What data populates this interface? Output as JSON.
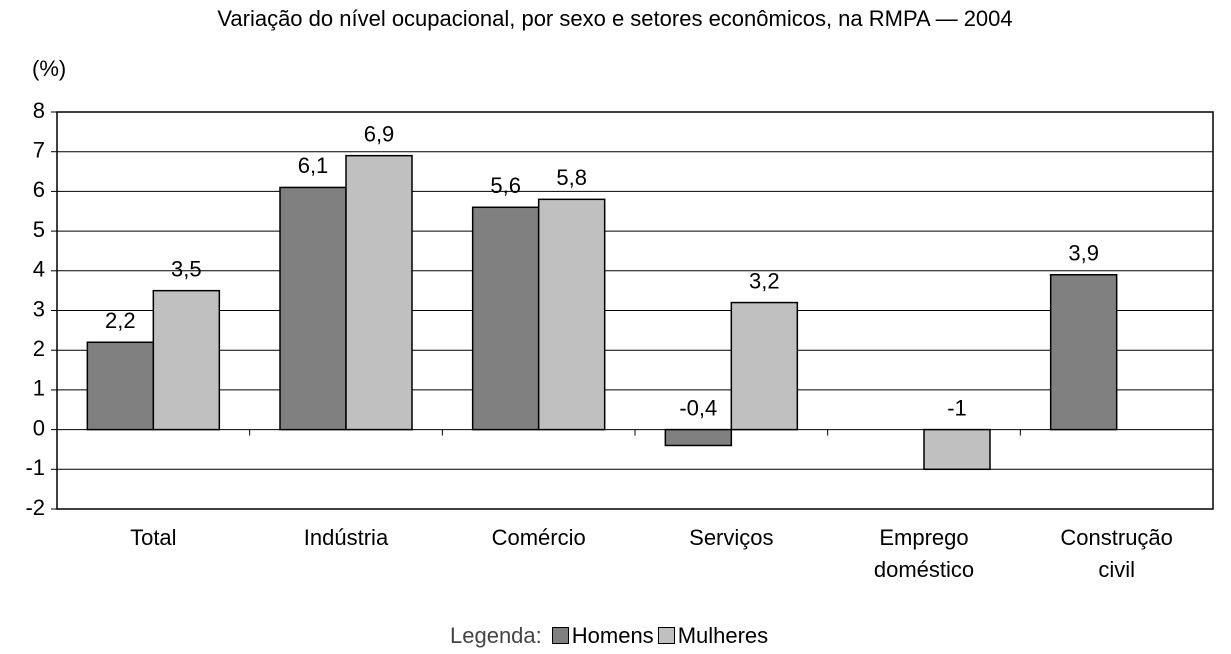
{
  "chart_data": {
    "type": "bar",
    "title": "Variação do nível ocupacional, por sexo e setores econômicos, na RMPA — 2004",
    "y_label": "(%)",
    "categories": [
      "Total",
      "Indústria",
      "Comércio",
      "Serviços",
      "Emprego doméstico",
      "Construção civil"
    ],
    "series": [
      {
        "name": "Homens",
        "color": "#808080",
        "values": [
          2.2,
          6.1,
          5.6,
          -0.4,
          null,
          3.9
        ],
        "value_labels": [
          "2,2",
          "6,1",
          "5,6",
          "-0,4",
          null,
          "3,9"
        ]
      },
      {
        "name": "Mulheres",
        "color": "#c0c0c0",
        "values": [
          3.5,
          6.9,
          5.8,
          3.2,
          -1,
          null
        ],
        "value_labels": [
          "3,5",
          "6,9",
          "5,8",
          "3,2",
          "-1",
          null
        ]
      }
    ],
    "legend_title": "Legenda:",
    "ylim": [
      -2,
      8
    ],
    "yticks": [
      -2,
      -1,
      0,
      1,
      2,
      3,
      4,
      5,
      6,
      7,
      8
    ],
    "grid": true
  }
}
